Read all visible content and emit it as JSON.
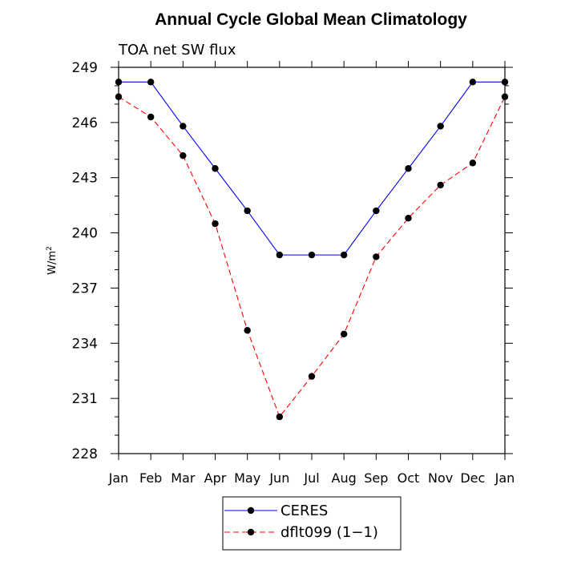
{
  "chart_data": {
    "type": "line",
    "title": "Annual Cycle Global Mean Climatology",
    "subtitle": "TOA net SW flux",
    "ylabel": "W/m",
    "ylabel_superscript": "2",
    "xlabel": "",
    "categories": [
      "Jan",
      "Feb",
      "Mar",
      "Apr",
      "May",
      "Jun",
      "Jul",
      "Aug",
      "Sep",
      "Oct",
      "Nov",
      "Dec",
      "Jan"
    ],
    "ylim": [
      228,
      249
    ],
    "yticks": [
      "228",
      "231",
      "234",
      "237",
      "240",
      "243",
      "246",
      "249"
    ],
    "grid": false,
    "legend_position": "bottom",
    "series": [
      {
        "name": "CERES",
        "color": "#0000ff",
        "dash": "solid",
        "values": [
          248.2,
          248.2,
          245.8,
          243.5,
          241.2,
          238.8,
          238.8,
          238.8,
          241.2,
          243.5,
          245.8,
          248.2,
          248.2
        ]
      },
      {
        "name": "dflt099 (1−1)",
        "color": "#ff0000",
        "dash": "dashed",
        "values": [
          247.4,
          246.3,
          244.2,
          240.5,
          234.7,
          230.0,
          232.2,
          234.5,
          238.7,
          240.8,
          242.6,
          243.8,
          247.4
        ]
      }
    ]
  }
}
